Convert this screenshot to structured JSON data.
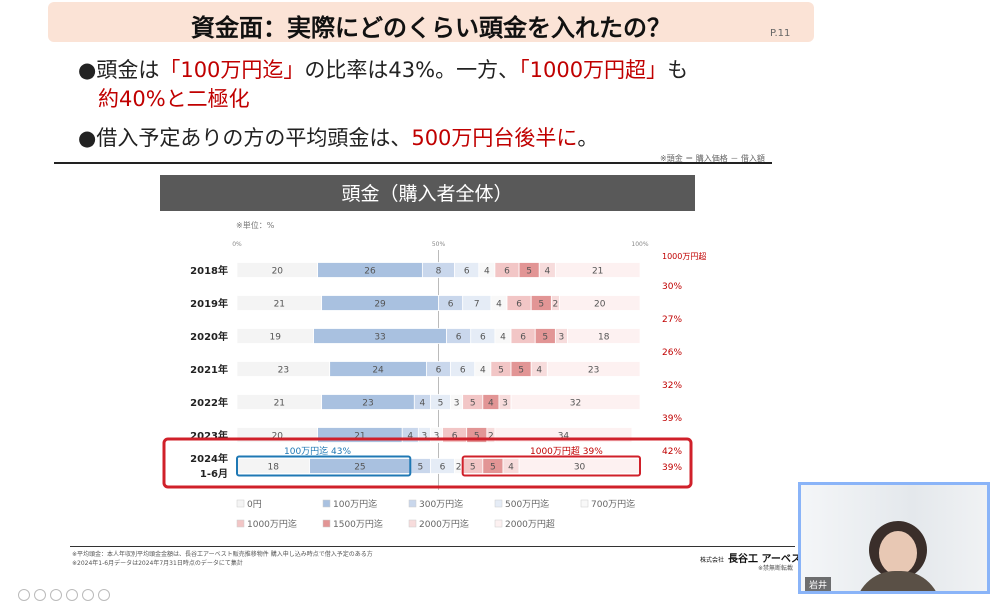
{
  "slide": {
    "title": "資金面：実際にどのくらい頭金を入れたの？",
    "page": "P.11",
    "bullet1": {
      "mark": "●",
      "pre": "頭金は",
      "hl1": "「100万円迄」",
      "mid": "の比率は43%。一方、",
      "hl2": "「1000万円超」",
      "post": "も",
      "line2": "約40%と二極化"
    },
    "bullet2": {
      "mark": "●",
      "pre": "借入予定ありの方の平均頭金は、",
      "hl": "500万円台後半に",
      "post": "。"
    },
    "footnote": "※頭金 ＝ 購入価格 － 借入額",
    "notes": [
      "※平均頭金：本人年収別平均頭金金額は、長谷工アーベスト販売推移物件 購入申し込み時点で借入予定のある方",
      "※2024年1-6月データは2024年7月31日時点のデータにて集計"
    ],
    "logo_small": "株式会社",
    "logo": "長谷工 アーベスト",
    "confidential": "※禁無断転載",
    "participant": "岩井"
  },
  "colors": {
    "bg_0": "#f4f4f4",
    "bg_100": "#a9c1e0",
    "bg_300": "#c9d7ec",
    "bg_500": "#e5ecf6",
    "bg_700": "#f8f8f8",
    "bg_1000": "#f2c6c6",
    "bg_1500": "#e29595",
    "bg_2000": "#f7dcdc",
    "bg_over": "#fdf1f1",
    "highlight": "#d0202a",
    "highlight_blue": "#1f78b4",
    "accent_red": "#c00000"
  },
  "chart_data": {
    "type": "bar",
    "title": "頭金（購入者全体）",
    "unit_note": "※単位：%",
    "x_ticks": [
      "0%",
      "50%",
      "100%"
    ],
    "categories": [
      "2018年",
      "2019年",
      "2020年",
      "2021年",
      "2022年",
      "2023年",
      "2024年\n1-6月"
    ],
    "series": [
      {
        "name": "0円",
        "color": "#f4f4f4",
        "values": [
          20,
          21,
          19,
          23,
          21,
          20,
          18
        ]
      },
      {
        "name": "100万円迄",
        "color": "#a9c1e0",
        "values": [
          26,
          29,
          33,
          24,
          23,
          21,
          25
        ]
      },
      {
        "name": "300万円迄",
        "color": "#c9d7ec",
        "values": [
          8,
          6,
          6,
          6,
          4,
          4,
          5
        ]
      },
      {
        "name": "500万円迄",
        "color": "#e5ecf6",
        "values": [
          6,
          7,
          6,
          6,
          5,
          3,
          6
        ]
      },
      {
        "name": "700万円迄",
        "color": "#f8f8f8",
        "values": [
          4,
          4,
          4,
          4,
          3,
          3,
          2
        ]
      },
      {
        "name": "1000万円迄",
        "color": "#f2c6c6",
        "values": [
          6,
          6,
          6,
          5,
          5,
          6,
          5
        ]
      },
      {
        "name": "1500万円迄",
        "color": "#e29595",
        "values": [
          5,
          5,
          5,
          5,
          4,
          5,
          5
        ]
      },
      {
        "name": "2000万円迄",
        "color": "#f7dcdc",
        "values": [
          4,
          2,
          3,
          4,
          3,
          2,
          4
        ]
      },
      {
        "name": "2000万円超",
        "color": "#fdf1f1",
        "values": [
          21,
          20,
          18,
          23,
          32,
          34,
          30
        ]
      }
    ],
    "right_label_header": "1000万円超",
    "right_labels": [
      "30%",
      "27%",
      "26%",
      "32%",
      "39%",
      "42%",
      "39%"
    ],
    "highlight_labels": {
      "left": "100万円迄 43%",
      "right": "1000万円超 39%"
    },
    "legend": [
      "0円",
      "100万円迄",
      "300万円迄",
      "500万円迄",
      "700万円迄",
      "1000万円迄",
      "1500万円迄",
      "2000万円迄",
      "2000万円超"
    ],
    "legend_placement": "bottom",
    "xlim": [
      0,
      100
    ]
  }
}
